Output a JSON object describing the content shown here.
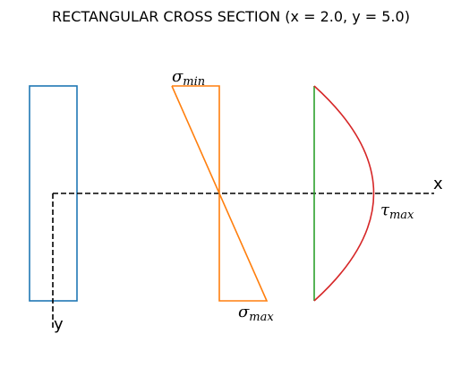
{
  "figure": {
    "title": "RECTANGULAR CROSS SECTION (x = 2.0, y = 5.0)",
    "x_label": "x",
    "y_label": "y",
    "sigma_min_label": {
      "symbol": "σ",
      "subscript": "min"
    },
    "sigma_max_label": {
      "symbol": "σ",
      "subscript": "max"
    },
    "tau_max_label": {
      "symbol": "τ",
      "subscript": "max"
    }
  },
  "colors": {
    "cross_section": "#1f77b4",
    "normal_stress": "#ff7f0e",
    "neutral_line": "#2ca02c",
    "shear_stress": "#d62728",
    "axes": "#000000"
  }
}
